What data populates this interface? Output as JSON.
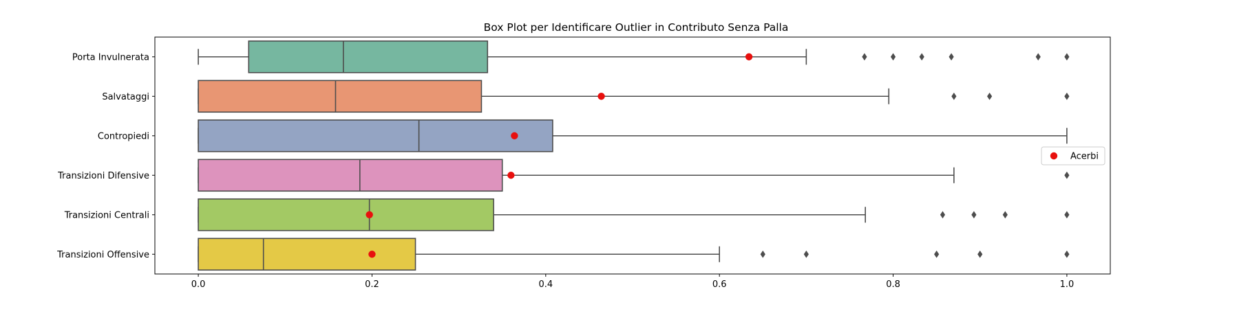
{
  "chart_data": {
    "type": "box",
    "orientation": "horizontal",
    "title": "Box Plot per Identificare Outlier in Contributo Senza Palla",
    "xlabel": "",
    "ylabel": "",
    "xlim": [
      -0.05,
      1.05
    ],
    "xticks": [
      0.0,
      0.2,
      0.4,
      0.6,
      0.8,
      1.0
    ],
    "xtick_labels": [
      "0.0",
      "0.2",
      "0.4",
      "0.6",
      "0.8",
      "1.0"
    ],
    "grid": false,
    "box_edge_color": "#4d4d4d",
    "highlight_color": "#e8100e",
    "categories": [
      {
        "label": "Porta Invulnerata",
        "color": "#76b7a0",
        "whisker_low": 0.0,
        "q1": 0.058,
        "median": 0.167,
        "q3": 0.333,
        "whisker_high": 0.7,
        "outliers": [
          0.767,
          0.8,
          0.833,
          0.867,
          0.967,
          1.0
        ],
        "highlight": 0.634
      },
      {
        "label": "Salvataggi",
        "color": "#e89673",
        "whisker_low": 0.0,
        "q1": 0.0,
        "median": 0.158,
        "q3": 0.326,
        "whisker_high": 0.795,
        "outliers": [
          0.87,
          0.911,
          1.0
        ],
        "highlight": 0.464
      },
      {
        "label": "Contropiedi",
        "color": "#94a4c3",
        "whisker_low": 0.0,
        "q1": 0.0,
        "median": 0.254,
        "q3": 0.408,
        "whisker_high": 1.0,
        "outliers": [],
        "highlight": 0.364
      },
      {
        "label": "Transizioni Difensive",
        "color": "#dd93bd",
        "whisker_low": 0.0,
        "q1": 0.0,
        "median": 0.186,
        "q3": 0.35,
        "whisker_high": 0.87,
        "outliers": [
          1.0
        ],
        "highlight": 0.36
      },
      {
        "label": "Transizioni Centrali",
        "color": "#a3c964",
        "whisker_low": 0.0,
        "q1": 0.0,
        "median": 0.197,
        "q3": 0.34,
        "whisker_high": 0.768,
        "outliers": [
          0.857,
          0.893,
          0.929,
          1.0
        ],
        "highlight": 0.197
      },
      {
        "label": "Transizioni Offensive",
        "color": "#e4c946",
        "whisker_low": 0.0,
        "q1": 0.0,
        "median": 0.075,
        "q3": 0.25,
        "whisker_high": 0.6,
        "outliers": [
          0.65,
          0.7,
          0.85,
          0.9,
          1.0
        ],
        "highlight": 0.2
      }
    ],
    "legend": {
      "position": "right",
      "entries": [
        {
          "label": "Acerbi",
          "color": "#e8100e",
          "marker": "circle"
        }
      ]
    }
  }
}
